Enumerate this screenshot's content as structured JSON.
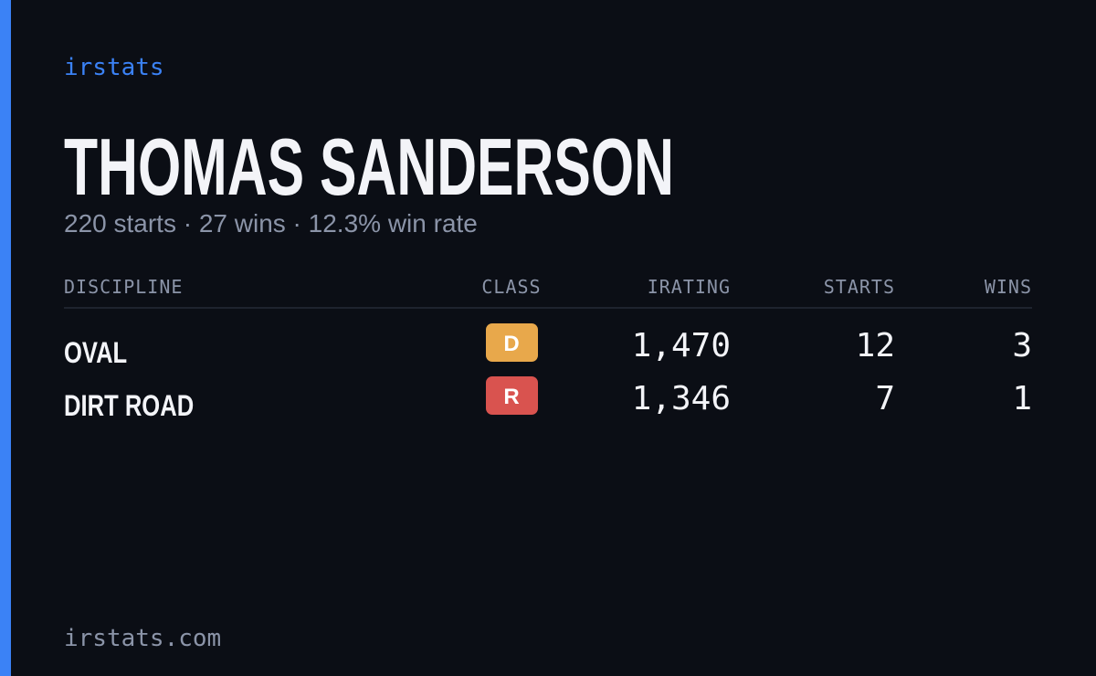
{
  "brand": "irstats",
  "driver": {
    "name": "THOMAS SANDERSON",
    "summary": "220 starts · 27 wins · 12.3% win rate"
  },
  "table": {
    "headers": [
      "DISCIPLINE",
      "CLASS",
      "IRATING",
      "STARTS",
      "WINS"
    ],
    "rows": [
      {
        "discipline": "OVAL",
        "class": "D",
        "class_color": "#e8a84b",
        "irating": "1,470",
        "starts": 12,
        "wins": 3
      },
      {
        "discipline": "DIRT ROAD",
        "class": "R",
        "class_color": "#d9534f",
        "irating": "1,346",
        "starts": 7,
        "wins": 1
      }
    ]
  },
  "footer": "irstats.com"
}
